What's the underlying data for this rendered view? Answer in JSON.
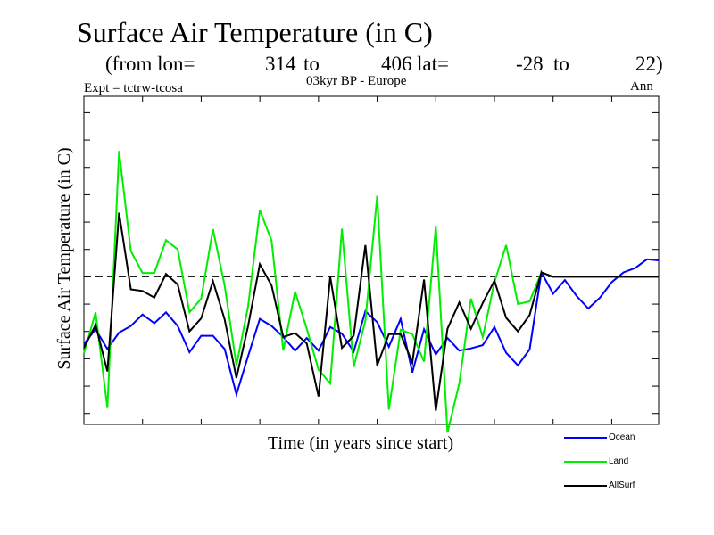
{
  "header": {
    "title": "Surface Air Temperature (in C)",
    "sub_prefix": "(from lon=",
    "lon_from": "314",
    "to1": "to",
    "lon_to": "406",
    "lat_label": "lat=",
    "lat_from": "-28",
    "to2": "to",
    "lat_to": "22)",
    "expt": "Expt = tctrw-tcosa",
    "period": "03kyr BP - Europe",
    "season": "Ann"
  },
  "chart_data": {
    "type": "line",
    "title": "Surface Air Temperature (in C)",
    "xlabel": "Time (in years since start)",
    "ylabel": "Surface Air Temperature (in C)",
    "x": [
      0,
      1,
      2,
      3,
      4,
      5,
      6,
      7,
      8,
      9,
      10,
      11,
      12,
      13,
      14,
      15,
      16,
      17,
      18,
      19,
      20,
      21,
      22,
      23,
      24,
      25,
      26,
      27,
      28,
      29,
      30,
      31,
      32,
      33,
      34,
      35,
      36,
      37,
      38,
      39,
      40,
      41,
      42,
      43,
      44,
      45,
      46,
      47,
      48,
      49
    ],
    "xlim": [
      0,
      49
    ],
    "ylim": [
      -2.7,
      3.3
    ],
    "reference_line": 0,
    "legend_position": "bottom-right",
    "series": [
      {
        "name": "Ocean",
        "color": "#0000ff",
        "values": [
          -1.23,
          -0.96,
          -1.32,
          -1.02,
          -0.9,
          -0.69,
          -0.85,
          -0.65,
          -0.9,
          -1.38,
          -1.08,
          -1.08,
          -1.32,
          -2.15,
          -1.45,
          -0.77,
          -0.9,
          -1.1,
          -1.35,
          -1.12,
          -1.35,
          -0.92,
          -1.04,
          -1.37,
          -0.63,
          -0.83,
          -1.28,
          -0.77,
          -1.75,
          -0.96,
          -1.42,
          -1.12,
          -1.35,
          -1.31,
          -1.25,
          -0.92,
          -1.39,
          -1.62,
          -1.33,
          0.08,
          -0.31,
          -0.06,
          -0.35,
          -0.58,
          -0.38,
          -0.1,
          0.08,
          0.16,
          0.32,
          0.3
        ]
      },
      {
        "name": "Land",
        "color": "#00ee00",
        "values": [
          -1.4,
          -0.65,
          -2.4,
          2.3,
          0.47,
          0.07,
          0.07,
          0.67,
          0.5,
          -0.65,
          -0.4,
          0.87,
          -0.16,
          -1.62,
          -0.54,
          1.22,
          0.66,
          -1.35,
          -0.27,
          -0.95,
          -1.7,
          -1.95,
          0.88,
          -1.65,
          -0.8,
          1.48,
          -2.43,
          -0.97,
          -1.05,
          -1.55,
          0.92,
          -2.85,
          -1.95,
          -0.4,
          -1.1,
          -0.1,
          0.58,
          -0.5,
          -0.45,
          0.08,
          0.0,
          0.0,
          0.0,
          0.0,
          0.0,
          0.0,
          0.0,
          0.0,
          0.0,
          0.0
        ]
      },
      {
        "name": "AllSurf",
        "color": "#000000",
        "values": [
          -1.3,
          -0.88,
          -1.73,
          1.17,
          -0.23,
          -0.26,
          -0.38,
          0.05,
          -0.14,
          -1.0,
          -0.76,
          -0.08,
          -0.78,
          -1.85,
          -0.9,
          0.23,
          -0.16,
          -1.1,
          -1.03,
          -1.22,
          -2.19,
          0.0,
          -1.3,
          -1.08,
          0.58,
          -1.62,
          -1.05,
          -1.05,
          -1.57,
          -0.05,
          -2.45,
          -0.95,
          -0.47,
          -0.95,
          -0.48,
          -0.07,
          -0.75,
          -1.0,
          -0.7,
          0.08,
          0.0,
          0.0,
          0.0,
          0.0,
          0.0,
          0.0,
          0.0,
          0.0,
          0.0,
          0.0
        ]
      }
    ]
  }
}
